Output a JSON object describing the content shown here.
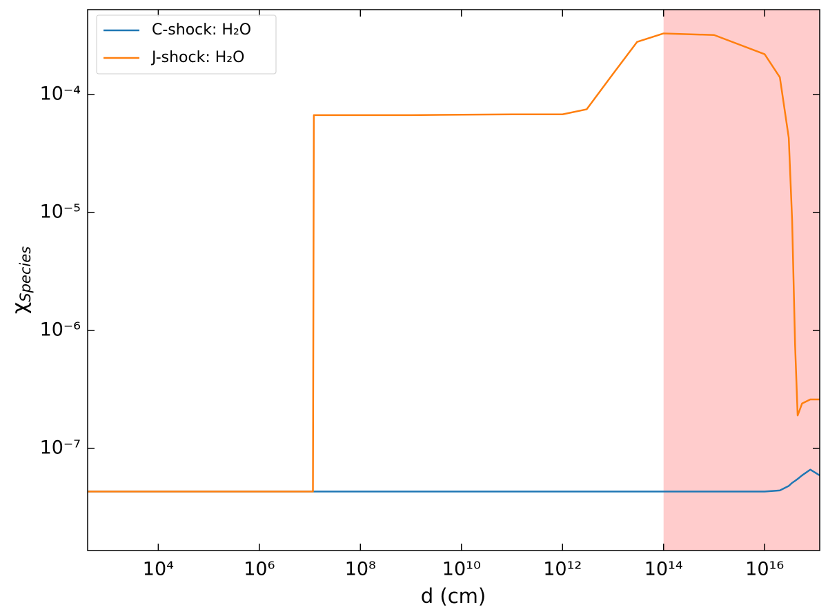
{
  "chart_data": {
    "type": "line",
    "x_label": "d (cm)",
    "y_label": "χSpecies",
    "x": [
      400.0,
      100000.0,
      1000000.0,
      11500000.0,
      12000000.0,
      1000000000.0,
      100000000000.0,
      1000000000000.0,
      3000000000000.0,
      10000000000000.0,
      30000000000000.0,
      100000000000000.0,
      1000000000000000.0,
      1e+16,
      2e+16,
      3e+16,
      3.5e+16,
      4e+16,
      4.5e+16,
      5.5e+16,
      8e+16,
      1.23e+17
    ],
    "series": [
      {
        "name": "C-shock: H₂O",
        "color": "#1f77b4",
        "values": [
          4.3e-08,
          4.3e-08,
          4.3e-08,
          4.3e-08,
          4.3e-08,
          4.3e-08,
          4.3e-08,
          4.3e-08,
          4.3e-08,
          4.3e-08,
          4.3e-08,
          4.3e-08,
          4.3e-08,
          4.3e-08,
          4.4e-08,
          4.8e-08,
          5.1e-08,
          5.3e-08,
          5.5e-08,
          5.9e-08,
          6.6e-08,
          5.9e-08
        ]
      },
      {
        "name": "J-shock: H₂O",
        "color": "#ff7f0e",
        "values": [
          4.3e-08,
          4.3e-08,
          4.3e-08,
          4.3e-08,
          6.7e-05,
          6.7e-05,
          6.8e-05,
          6.8e-05,
          7.5e-05,
          0.00015,
          0.00028,
          0.00033,
          0.00032,
          0.00022,
          0.00014,
          4.3e-05,
          8.5e-06,
          7.6e-07,
          1.9e-07,
          2.4e-07,
          2.6e-07,
          2.6e-07
        ]
      }
    ],
    "shade": {
      "x": [
        100000000000000.0,
        1.23e+17
      ],
      "color": "#ffcccc"
    },
    "xlog": true,
    "ylog": true,
    "xlim": [
      400.0,
      1.23e+17
    ],
    "ylim": [
      1.36e-08,
      0.000525
    ],
    "xticks": [
      {
        "value": 10000.0,
        "label": "10⁴"
      },
      {
        "value": 1000000.0,
        "label": "10⁶"
      },
      {
        "value": 100000000.0,
        "label": "10⁸"
      },
      {
        "value": 10000000000.0,
        "label": "10¹⁰"
      },
      {
        "value": 1000000000000.0,
        "label": "10¹²"
      },
      {
        "value": 100000000000000.0,
        "label": "10¹⁴"
      },
      {
        "value": 1e+16,
        "label": "10¹⁶"
      }
    ],
    "yticks": [
      {
        "value": 1e-07,
        "label": "10⁻⁷"
      },
      {
        "value": 1e-06,
        "label": "10⁻⁶"
      },
      {
        "value": 1e-05,
        "label": "10⁻⁵"
      },
      {
        "value": 0.0001,
        "label": "10⁻⁴"
      }
    ],
    "legend": "upper left",
    "grid": false
  }
}
